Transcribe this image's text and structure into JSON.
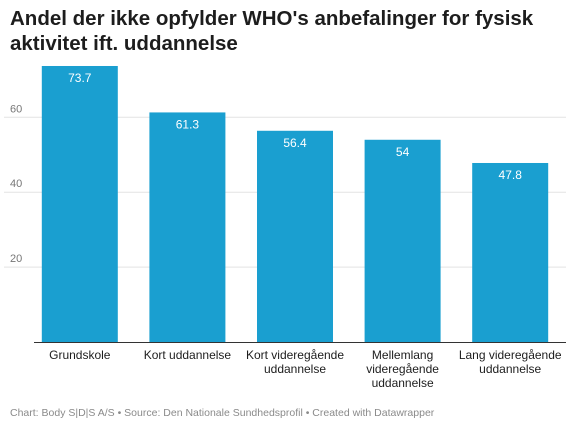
{
  "title": "Andel der ikke opfylder WHO's anbefalinger for fysisk aktivitet ift. uddannelse",
  "footer": "Chart: Body S|D|S A/S • Source: Den Nationale Sundhedsprofil • Created with Datawrapper",
  "colors": {
    "bar": "#1a9fd0",
    "grid": "#e3e3e3",
    "axis": "#333333",
    "tick_text": "#777777",
    "value_text": "#ffffff"
  },
  "chart_data": {
    "type": "bar",
    "title": "Andel der ikke opfylder WHO's anbefalinger for fysisk aktivitet ift. uddannelse",
    "categories": [
      [
        "Grundskole"
      ],
      [
        "Kort uddannelse"
      ],
      [
        "Kort videregående",
        "uddannelse"
      ],
      [
        "Mellemlang",
        "videregående",
        "uddannelse"
      ],
      [
        "Lang videregående",
        "uddannelse"
      ]
    ],
    "values": [
      73.7,
      61.3,
      56.4,
      54,
      47.8
    ],
    "value_labels": [
      "73.7",
      "61.3",
      "56.4",
      "54",
      "47.8"
    ],
    "yticks": [
      20,
      40,
      60
    ],
    "ylim": [
      0,
      74
    ],
    "xlabel": "",
    "ylabel": "",
    "grid": true,
    "legend": "none"
  }
}
